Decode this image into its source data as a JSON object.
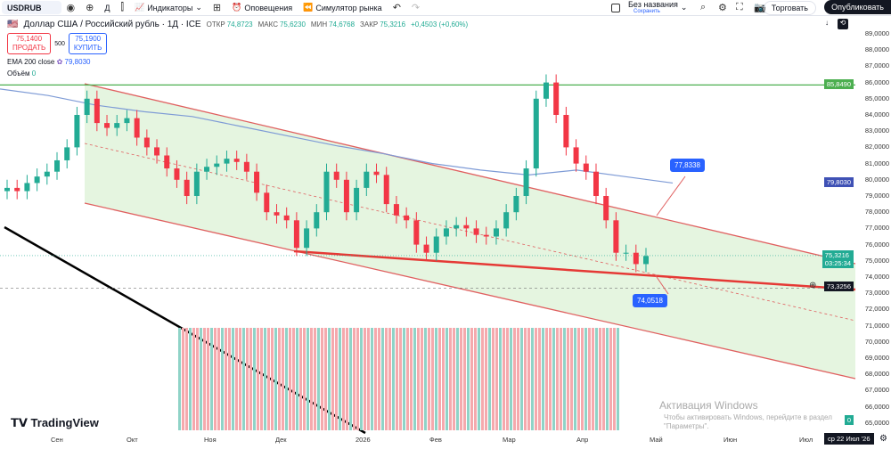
{
  "toolbar": {
    "symbol": "USDRUB",
    "interval": "Д",
    "indicators": "Индикаторы",
    "alerts": "Оповещения",
    "replay": "Симулятор рынка",
    "layout_name": "Без названия",
    "save": "Сохранить",
    "trade": "Торговать",
    "publish": "Опубликовать"
  },
  "legend": {
    "title": "Доллар США / Российский рубль · 1Д · ICE",
    "open_label": "ОТКР",
    "open": "74,8723",
    "high_label": "МАКС",
    "high": "75,6230",
    "low_label": "МИН",
    "low": "74,6768",
    "close_label": "ЗАКР",
    "close": "75,3216",
    "change": "+0,4503 (+0,60%)",
    "sell_price": "75,1400",
    "sell_label": "ПРОДАТЬ",
    "spread": "500",
    "buy_price": "75,1900",
    "buy_label": "КУПИТЬ",
    "ema_label": "EMA 200 close",
    "ema_value": "79,8030",
    "volume_label": "Объём",
    "volume_value": "0"
  },
  "chart_data": {
    "type": "candlestick",
    "ylim": [
      64.5,
      89.5
    ],
    "y_ticks": [
      "89,0000",
      "88,0000",
      "87,0000",
      "86,0000",
      "85,0000",
      "84,0000",
      "83,0000",
      "82,0000",
      "81,0000",
      "80,0000",
      "79,0000",
      "78,0000",
      "77,0000",
      "76,0000",
      "75,0000",
      "74,0000",
      "73,0000",
      "72,0000",
      "71,0000",
      "70,0000",
      "69,0000",
      "68,0000",
      "67,0000",
      "66,0000",
      "65,0000"
    ],
    "x_ticks": [
      "Сен",
      "Окт",
      "Ноя",
      "Дек",
      "2026",
      "Фев",
      "Мар",
      "Апр",
      "Май",
      "Июн",
      "Июл"
    ],
    "closes": [
      79.5,
      79.3,
      79.8,
      80.2,
      80.5,
      81.2,
      82,
      84,
      85,
      83.5,
      83.2,
      83.5,
      83.8,
      82.6,
      82,
      81.5,
      80.7,
      80,
      79,
      80.5,
      80.8,
      81,
      81.3,
      81.1,
      80.5,
      79.2,
      78,
      77.8,
      77.5,
      75.8,
      77,
      78,
      80.5,
      80,
      78,
      79.5,
      80.5,
      80.3,
      78.5,
      77.8,
      77.5,
      76,
      75.5,
      76.5,
      77,
      77.2,
      77,
      76.6,
      76.5,
      77,
      78,
      79,
      80.7,
      85,
      86,
      84,
      82,
      81,
      80.5,
      79,
      77.5,
      75.5,
      75.5,
      74.8,
      75.3
    ],
    "ema": [
      85.6,
      85.2,
      84.6,
      84.2,
      83.9,
      83.3,
      82.7,
      82.1,
      81.6,
      81.0,
      80.6,
      80.3,
      80.6,
      80.2,
      79.8
    ],
    "price_labels": {
      "resistance": "85,8490",
      "ema": "79,8030",
      "last": "75,3216",
      "countdown": "03:25:34",
      "crosshair": "73,3256",
      "upper_callout": "77,8338",
      "lower_callout": "74,0518",
      "volume": "0"
    },
    "crosshair_date": "ср 22 Июл '26"
  },
  "colors": {
    "up": "#22ab94",
    "down": "#f23645",
    "channel_fill": "#dff2d8",
    "ema": "#7e9bd6",
    "resistance": "#4caf50"
  },
  "branding": "TradingView",
  "watermark": {
    "line1": "Активация Windows",
    "line2": "Чтобы активировать Windows, перейдите в раздел \"Параметры\"."
  }
}
